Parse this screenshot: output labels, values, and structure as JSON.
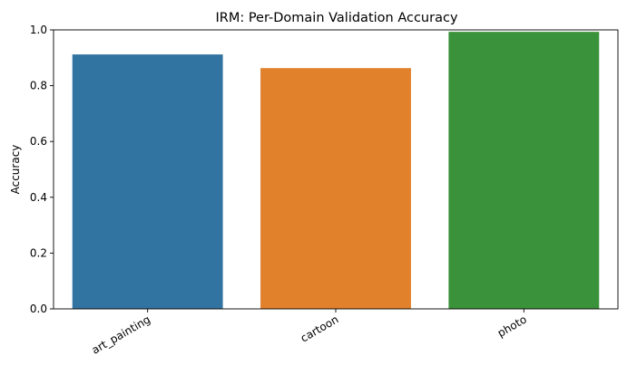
{
  "chart_data": {
    "type": "bar",
    "title": "IRM: Per-Domain Validation Accuracy",
    "xlabel": "",
    "ylabel": "Accuracy",
    "categories": [
      "art_painting",
      "cartoon",
      "photo"
    ],
    "values": [
      0.912,
      0.863,
      0.993
    ],
    "colors": [
      "#3274a1",
      "#e1812c",
      "#3a923a"
    ],
    "ylim": [
      0,
      1.0
    ],
    "yticks": [
      "0.0",
      "0.2",
      "0.4",
      "0.6",
      "0.8",
      "1.0"
    ],
    "xtick_rotation": 30,
    "grid": false,
    "legend": "none"
  }
}
